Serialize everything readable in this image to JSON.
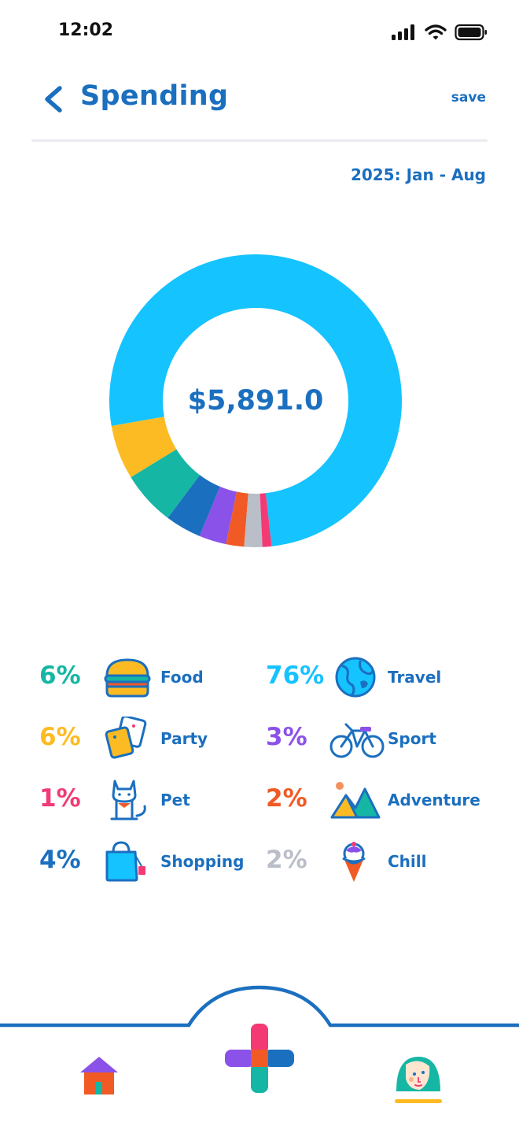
{
  "status_bar": {
    "time": "12:02"
  },
  "header": {
    "title": "Spending",
    "save_label": "save"
  },
  "date_range": "2025: Jan - Aug",
  "total_amount": "$5,891.0",
  "categories": [
    {
      "name": "Food",
      "percent_label": "6%",
      "percent": 6,
      "color": "#16b6a5",
      "icon": "burger-icon"
    },
    {
      "name": "Party",
      "percent_label": "6%",
      "percent": 6,
      "color": "#fdbb23",
      "icon": "cards-icon"
    },
    {
      "name": "Pet",
      "percent_label": "1%",
      "percent": 1,
      "color": "#f33a75",
      "icon": "cat-icon"
    },
    {
      "name": "Shopping",
      "percent_label": "4%",
      "percent": 4,
      "color": "#1b6fbf",
      "icon": "shopping-bag-icon"
    },
    {
      "name": "Travel",
      "percent_label": "76%",
      "percent": 76,
      "color": "#15c3ff",
      "icon": "globe-icon"
    },
    {
      "name": "Sport",
      "percent_label": "3%",
      "percent": 3,
      "color": "#8b52e9",
      "icon": "bicycle-icon"
    },
    {
      "name": "Adventure",
      "percent_label": "2%",
      "percent": 2,
      "color": "#f15a24",
      "icon": "mountain-icon"
    },
    {
      "name": "Chill",
      "percent_label": "2%",
      "percent": 2,
      "color": "#b9bec8",
      "icon": "ice-cream-icon"
    }
  ],
  "chart_data": {
    "type": "pie",
    "slices": [
      {
        "label": "Travel",
        "value": 76,
        "color": "#15c3ff"
      },
      {
        "label": "Party",
        "value": 6,
        "color": "#fdbb23"
      },
      {
        "label": "Food",
        "value": 6,
        "color": "#16b6a5"
      },
      {
        "label": "Shopping",
        "value": 4,
        "color": "#1b6fbf"
      },
      {
        "label": "Sport",
        "value": 3,
        "color": "#8b52e9"
      },
      {
        "label": "Adventure",
        "value": 2,
        "color": "#f15a24"
      },
      {
        "label": "Chill",
        "value": 2,
        "color": "#b9bec8"
      },
      {
        "label": "Pet",
        "value": 1,
        "color": "#f33a75"
      }
    ],
    "center_label": "$5,891.0"
  },
  "nav": {
    "items": [
      "home-icon",
      "add-icon",
      "profile-avatar-icon"
    ],
    "active": "profile-avatar-icon"
  }
}
